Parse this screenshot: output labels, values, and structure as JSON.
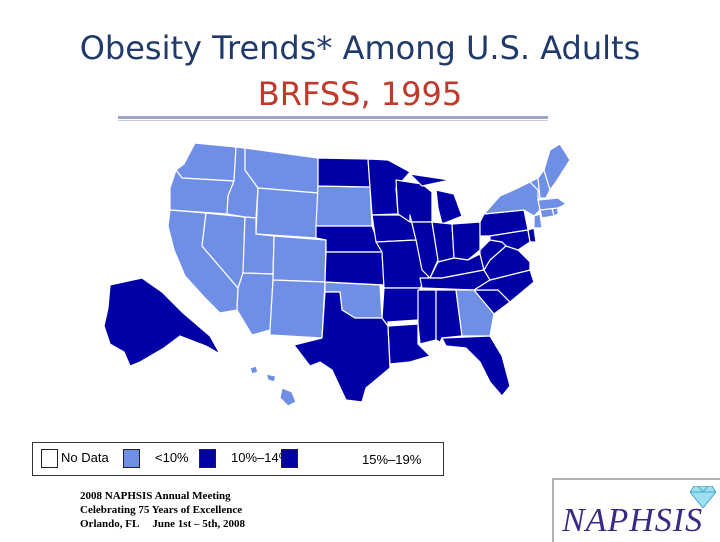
{
  "title": {
    "line1": "Obesity Trends* Among U.S. Adults",
    "line2": "BRFSS, 1995"
  },
  "colors": {
    "title": "#1f3a6b",
    "subtitle": "#c0392b",
    "no_data": "#ffffff",
    "lt10": "#6f8fe6",
    "p10_14": "#0000a6",
    "p15_19": "#0000a6"
  },
  "legend": [
    {
      "label": "No Data",
      "color": "#ffffff"
    },
    {
      "label": "<10%",
      "color": "#6f8fe6"
    },
    {
      "label": "10%–14%",
      "color": "#0000a6"
    },
    {
      "label": "15%–19%",
      "color": "#0000a6"
    }
  ],
  "map": {
    "categories": {
      "lt10": [
        "WA",
        "OR",
        "CA",
        "NV",
        "ID",
        "MT",
        "WY",
        "UT",
        "CO",
        "AZ",
        "NM",
        "OK",
        "SD",
        "GA",
        "NY",
        "VT",
        "NH",
        "ME",
        "MA",
        "CT",
        "RI",
        "NJ",
        "HI"
      ],
      "p10_14": [
        "ND",
        "MN",
        "WI",
        "MI",
        "IA",
        "NE",
        "KS",
        "MO",
        "IL",
        "IN",
        "OH",
        "KY",
        "TN",
        "AR",
        "LA",
        "MS",
        "AL",
        "TX",
        "FL",
        "SC",
        "NC",
        "VA",
        "WV",
        "PA",
        "MD",
        "DE",
        "AK"
      ]
    }
  },
  "footer": {
    "line1": "2008 NAPHSIS Annual Meeting",
    "line2": "Celebrating 75 Years of Excellence",
    "line3": "Orlando, FL     June 1st – 5th, 2008"
  },
  "logo": {
    "text": "NAPHSIS",
    "icon": "diamond-icon"
  }
}
